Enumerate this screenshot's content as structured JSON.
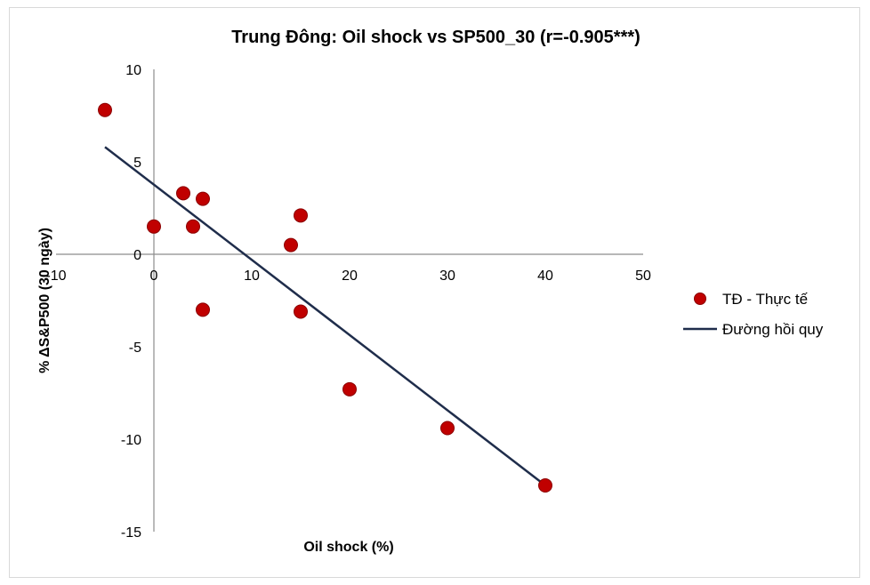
{
  "chart_data": {
    "type": "scatter",
    "title": "Trung Đông:  Oil shock vs SP500_30  (r=-0.905***)",
    "xlabel": "Oil shock (%)",
    "ylabel": "% ΔS&P500 (30 ngày)",
    "xlim": [
      -10,
      50
    ],
    "ylim": [
      -15,
      10
    ],
    "xticks": [
      -10,
      0,
      10,
      20,
      30,
      40,
      50
    ],
    "yticks": [
      10,
      5,
      0,
      -5,
      -10,
      -15
    ],
    "grid": false,
    "legend_position": "right",
    "series": [
      {
        "name": "TĐ - Thực tế",
        "kind": "scatter",
        "color": "#c00000",
        "points": [
          {
            "x": -5,
            "y": 7.8
          },
          {
            "x": 0,
            "y": 1.5
          },
          {
            "x": 3,
            "y": 3.3
          },
          {
            "x": 4,
            "y": 1.5
          },
          {
            "x": 5,
            "y": 3.0
          },
          {
            "x": 5,
            "y": -3.0
          },
          {
            "x": 14,
            "y": 0.5
          },
          {
            "x": 15,
            "y": 2.1
          },
          {
            "x": 15,
            "y": -3.1
          },
          {
            "x": 20,
            "y": -7.3
          },
          {
            "x": 30,
            "y": -9.4
          },
          {
            "x": 40,
            "y": -12.5
          }
        ]
      },
      {
        "name": "Đường hồi quy",
        "kind": "line",
        "color": "#1f2d4b",
        "points": [
          {
            "x": -5,
            "y": 5.8
          },
          {
            "x": 40,
            "y": -12.5
          }
        ]
      }
    ]
  }
}
